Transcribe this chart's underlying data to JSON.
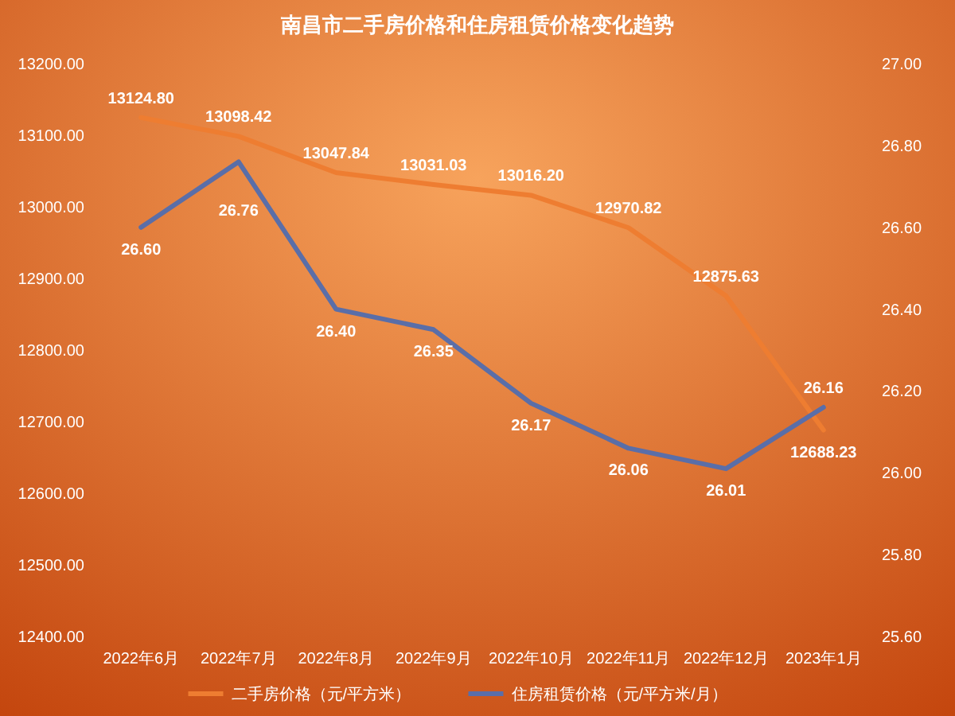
{
  "chart_data": {
    "type": "line",
    "title": "南昌市二手房价格和住房租赁价格变化趋势",
    "categories": [
      "2022年6月",
      "2022年7月",
      "2022年8月",
      "2022年9月",
      "2022年10月",
      "2022年11月",
      "2022年12月",
      "2023年1月"
    ],
    "series": [
      {
        "name": "二手房价格（元/平方米）",
        "color": "#ee7d31",
        "values": [
          13124.8,
          13098.42,
          13047.84,
          13031.03,
          13016.2,
          12970.82,
          12875.63,
          12688.23
        ],
        "value_labels": [
          "13124.80",
          "13098.42",
          "13047.84",
          "13031.03",
          "13016.20",
          "12970.82",
          "12875.63",
          "12688.23"
        ]
      },
      {
        "name": "住房租赁价格（元/平方米/月）",
        "color": "#5a6ea8",
        "axis": "y2",
        "values": [
          26.6,
          26.76,
          26.4,
          26.35,
          26.17,
          26.06,
          26.01,
          26.16
        ],
        "value_labels": [
          "26.60",
          "26.76",
          "26.40",
          "26.35",
          "26.17",
          "26.06",
          "26.01",
          "26.16"
        ]
      }
    ],
    "ylim": [
      12400,
      13200
    ],
    "yticks": [
      {
        "value": 12400,
        "label": "12400.00"
      },
      {
        "value": 12500,
        "label": "12500.00"
      },
      {
        "value": 12600,
        "label": "12600.00"
      },
      {
        "value": 12700,
        "label": "12700.00"
      },
      {
        "value": 12800,
        "label": "12800.00"
      },
      {
        "value": 12900,
        "label": "12900.00"
      },
      {
        "value": 13000,
        "label": "13000.00"
      },
      {
        "value": 13100,
        "label": "13100.00"
      },
      {
        "value": 13200,
        "label": "13200.00"
      }
    ],
    "y2lim": [
      25.6,
      27.0
    ],
    "y2ticks": [
      {
        "value": 25.6,
        "label": "25.60"
      },
      {
        "value": 25.8,
        "label": "25.80"
      },
      {
        "value": 26.0,
        "label": "26.00"
      },
      {
        "value": 26.2,
        "label": "26.20"
      },
      {
        "value": 26.4,
        "label": "26.40"
      },
      {
        "value": 26.6,
        "label": "26.60"
      },
      {
        "value": 26.8,
        "label": "26.80"
      },
      {
        "value": 27.0,
        "label": "27.00"
      }
    ],
    "legend": "bottom",
    "grid": false
  }
}
